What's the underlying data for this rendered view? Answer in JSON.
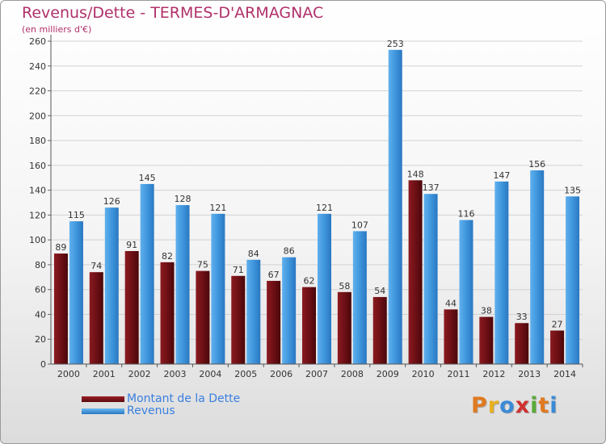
{
  "header": {
    "title": "Revenus/Dette - TERMES-D'ARMAGNAC",
    "subtitle": "(en milliers d'€)"
  },
  "colors": {
    "dette": "#6e1014",
    "revenus": "#3f96dc",
    "title": "#b0306a",
    "legend_text": "#3a7fe0"
  },
  "chart_data": {
    "type": "bar",
    "title": "Revenus/Dette - TERMES-D'ARMAGNAC",
    "subtitle": "(en milliers d'€)",
    "categories": [
      "2000",
      "2001",
      "2002",
      "2003",
      "2004",
      "2005",
      "2006",
      "2007",
      "2008",
      "2009",
      "2010",
      "2011",
      "2012",
      "2013",
      "2014"
    ],
    "series": [
      {
        "name": "Montant de la Dette",
        "values": [
          89,
          74,
          91,
          82,
          75,
          71,
          67,
          62,
          58,
          54,
          148,
          44,
          38,
          33,
          27
        ]
      },
      {
        "name": "Revenus",
        "values": [
          115,
          126,
          145,
          128,
          121,
          84,
          86,
          121,
          107,
          253,
          137,
          116,
          147,
          156,
          135
        ]
      }
    ],
    "ylim": [
      0,
      260
    ],
    "yticks": [
      0,
      20,
      40,
      60,
      80,
      100,
      120,
      140,
      160,
      180,
      200,
      220,
      240,
      260
    ],
    "grid": true,
    "legend_position": "bottom-left"
  },
  "legend": {
    "items": [
      {
        "label": "Montant de la Dette"
      },
      {
        "label": "Revenus"
      }
    ]
  },
  "logo": {
    "letters": [
      "P",
      "r",
      "o",
      "x",
      "i",
      "t",
      "i"
    ],
    "colors": [
      "#e07a1f",
      "#e8b020",
      "#3a8ad8",
      "#d03030",
      "#5aaa3a",
      "#e07a1f",
      "#3a8ad8"
    ]
  }
}
